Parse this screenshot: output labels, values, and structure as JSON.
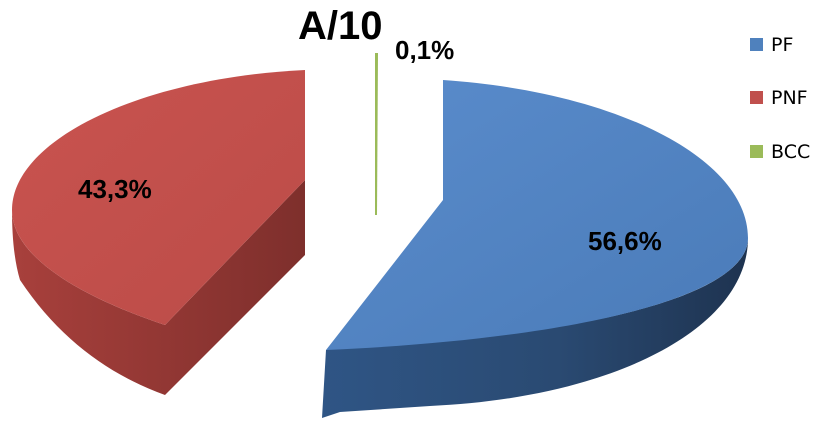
{
  "chart_data": {
    "type": "pie",
    "title": "A/10",
    "categories": [
      "PF",
      "PNF",
      "BCC"
    ],
    "values": [
      56.6,
      43.3,
      0.1
    ],
    "data_labels": [
      "56,6%",
      "43,3%",
      "0,1%"
    ],
    "colors": [
      "#4F81BD",
      "#C0504D",
      "#9BBB59"
    ],
    "legend_position": "right",
    "style": "3d-exploded"
  }
}
